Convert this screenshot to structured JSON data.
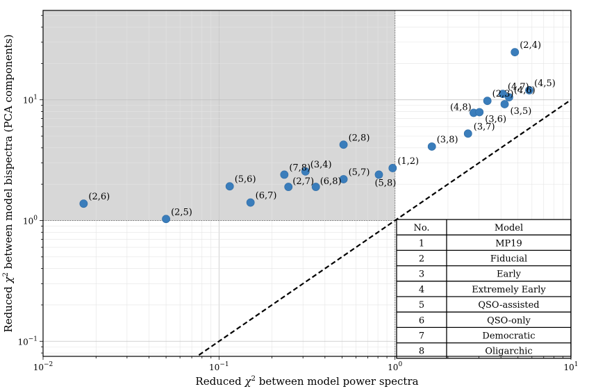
{
  "chart_data": {
    "type": "scatter",
    "x_scale": "log",
    "y_scale": "log",
    "xlim": [
      0.01,
      10
    ],
    "ylim": [
      0.075,
      55
    ],
    "xlabel_pre": "Reduced ",
    "xlabel_chi": "χ",
    "xlabel_post": " between model power spectra",
    "ylabel_pre": "Reduced ",
    "ylabel_chi": "χ",
    "ylabel_post": " between model bispectra (PCA components)",
    "x_ticks": [
      {
        "value": 0.01,
        "base": "10",
        "exp": "−2"
      },
      {
        "value": 0.1,
        "base": "10",
        "exp": "−1"
      },
      {
        "value": 1,
        "base": "10",
        "exp": "0"
      },
      {
        "value": 10,
        "base": "10",
        "exp": "1"
      }
    ],
    "y_ticks": [
      {
        "value": 0.1,
        "base": "10",
        "exp": "−1"
      },
      {
        "value": 1,
        "base": "10",
        "exp": "0"
      },
      {
        "value": 10,
        "base": "10",
        "exp": "1"
      }
    ],
    "marker_color": "#3a7dbb",
    "shaded_region": {
      "x_max": 1,
      "y_min": 1,
      "color": "#d7d7d7"
    },
    "reference_lines": {
      "x": 1,
      "y": 1,
      "diagonal": "y = x"
    },
    "points": [
      {
        "label": "(2,6)",
        "x": 0.017,
        "y": 1.38
      },
      {
        "label": "(2,5)",
        "x": 0.05,
        "y": 1.03
      },
      {
        "label": "(5,6)",
        "x": 0.115,
        "y": 1.92
      },
      {
        "label": "(6,7)",
        "x": 0.151,
        "y": 1.41
      },
      {
        "label": "(7,8)",
        "x": 0.235,
        "y": 2.4
      },
      {
        "label": "(2,7)",
        "x": 0.248,
        "y": 1.9
      },
      {
        "label": "(3,4)",
        "x": 0.31,
        "y": 2.55
      },
      {
        "label": "(6,8)",
        "x": 0.355,
        "y": 1.9
      },
      {
        "label": "(2,8)",
        "x": 0.51,
        "y": 4.25
      },
      {
        "label": "(5,7)",
        "x": 0.51,
        "y": 2.2
      },
      {
        "label": "(5,8)",
        "x": 0.81,
        "y": 2.4
      },
      {
        "label": "(1,2)",
        "x": 0.97,
        "y": 2.72
      },
      {
        "label": "(3,8)",
        "x": 1.62,
        "y": 4.1
      },
      {
        "label": "(3,7)",
        "x": 2.6,
        "y": 5.25
      },
      {
        "label": "(4,8)",
        "x": 2.8,
        "y": 7.8
      },
      {
        "label": "(3,6)",
        "x": 3.02,
        "y": 7.9
      },
      {
        "label": "(2,3)",
        "x": 3.35,
        "y": 9.8
      },
      {
        "label": "(3,5)",
        "x": 4.2,
        "y": 9.2
      },
      {
        "label": "(4,7)",
        "x": 4.1,
        "y": 11.2
      },
      {
        "label": "(4,6)",
        "x": 4.45,
        "y": 10.5
      },
      {
        "label": "(2,4)",
        "x": 4.8,
        "y": 24.8
      },
      {
        "label": "(4,5)",
        "x": 5.8,
        "y": 12.0
      }
    ],
    "legend_table": {
      "headers": [
        "No.",
        "Model"
      ],
      "rows": [
        [
          "1",
          "MP19"
        ],
        [
          "2",
          "Fiducial"
        ],
        [
          "3",
          "Early"
        ],
        [
          "4",
          "Extremely Early"
        ],
        [
          "5",
          "QSO-assisted"
        ],
        [
          "6",
          "QSO-only"
        ],
        [
          "7",
          "Democratic"
        ],
        [
          "8",
          "Oligarchic"
        ]
      ]
    }
  }
}
